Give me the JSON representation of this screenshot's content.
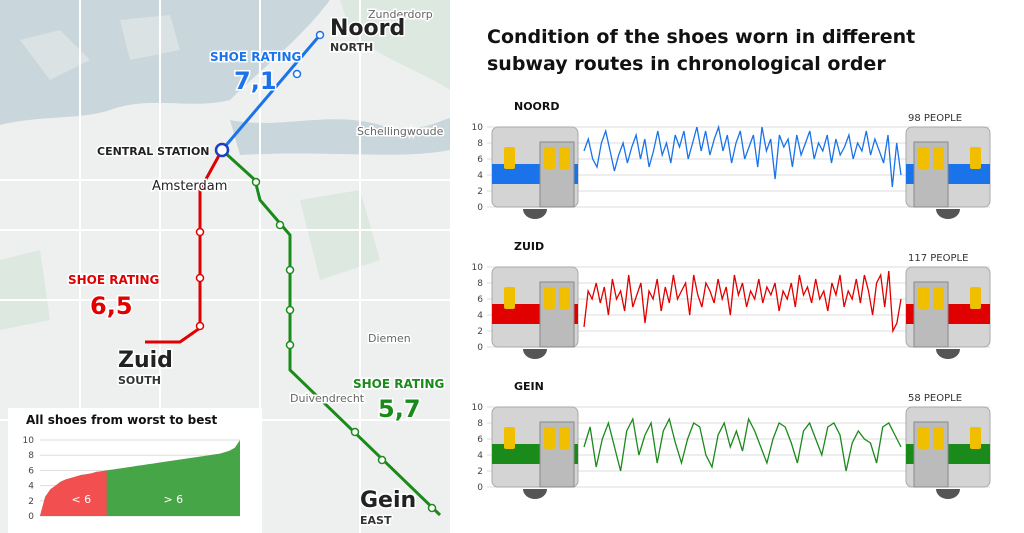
{
  "map": {
    "places": [
      {
        "label": "Zunderdorp",
        "kind": "place"
      },
      {
        "label": "Noord",
        "kind": "stop"
      },
      {
        "label": "NORTH",
        "kind": "sub"
      },
      {
        "label": "SHOE RATING",
        "kind": "rating-label",
        "color": "#1a73e8"
      },
      {
        "label": "7,1",
        "kind": "rating",
        "color": "#1a73e8"
      },
      {
        "label": "CENTRAL STATION",
        "kind": "station"
      },
      {
        "label": "Amsterdam",
        "kind": "city"
      },
      {
        "label": "Schellingwoude",
        "kind": "place"
      },
      {
        "label": "SHOE RATING",
        "kind": "rating-label",
        "color": "#e00000"
      },
      {
        "label": "6,5",
        "kind": "rating",
        "color": "#e00000"
      },
      {
        "label": "Zuid",
        "kind": "stop"
      },
      {
        "label": "SOUTH",
        "kind": "sub"
      },
      {
        "label": "Diemen",
        "kind": "place"
      },
      {
        "label": "Duivendrecht",
        "kind": "place"
      },
      {
        "label": "SHOE RATING",
        "kind": "rating-label",
        "color": "#1a8a1a"
      },
      {
        "label": "5,7",
        "kind": "rating",
        "color": "#1a8a1a"
      },
      {
        "label": "Gein",
        "kind": "stop"
      },
      {
        "label": "EAST",
        "kind": "sub"
      }
    ]
  },
  "headline": "Condition of the shoes worn in different subway routes in chronological order",
  "chart_data": [
    {
      "type": "line",
      "title": "NOORD",
      "annotation": "98 PEOPLE",
      "color": "#1a73e8",
      "ylim": [
        0,
        10
      ],
      "yticks": [
        0,
        2,
        4,
        6,
        8,
        10
      ],
      "values": [
        7,
        8.5,
        6,
        5,
        8,
        9.5,
        7,
        4.5,
        6.5,
        8,
        5.5,
        7.5,
        9,
        6,
        8.5,
        5,
        7,
        9.5,
        6.5,
        8,
        5.5,
        9,
        7.5,
        9.5,
        6,
        8,
        10,
        7,
        9.5,
        6.5,
        8.5,
        10,
        7,
        9,
        5.5,
        8,
        9.5,
        6,
        7.5,
        9,
        5,
        10,
        7,
        8.5,
        3.5,
        9,
        7.5,
        8.5,
        5,
        9,
        6.5,
        8,
        9.5,
        6,
        8,
        7,
        9,
        5.5,
        8.5,
        6.5,
        7.5,
        9,
        6,
        8,
        7,
        9.5,
        6.5,
        8.5,
        7,
        5.5,
        9,
        2.5,
        8,
        4
      ]
    },
    {
      "type": "line",
      "title": "ZUID",
      "annotation": "117 PEOPLE",
      "color": "#e00000",
      "ylim": [
        0,
        10
      ],
      "yticks": [
        0,
        2,
        4,
        6,
        8,
        10
      ],
      "values": [
        2.5,
        7,
        6,
        8,
        5.5,
        7.5,
        4,
        8.5,
        6,
        7,
        4.5,
        9,
        5,
        6.5,
        8,
        3,
        7,
        6,
        8.5,
        4.5,
        7.5,
        5.5,
        9,
        6,
        7,
        8,
        4,
        9,
        6.5,
        5,
        8,
        7,
        5.5,
        8.5,
        6,
        7.5,
        4,
        9,
        6.5,
        8,
        5,
        7,
        6,
        8.5,
        5.5,
        7.5,
        6.5,
        8,
        4.5,
        7,
        6,
        8,
        5,
        9,
        6.5,
        7.5,
        5.5,
        8.5,
        6,
        7,
        4.5,
        8,
        6.5,
        9,
        5,
        7,
        6,
        8.5,
        5.5,
        9,
        7,
        4,
        8,
        9,
        5,
        9.5,
        2,
        3,
        6
      ]
    },
    {
      "type": "line",
      "title": "GEIN",
      "annotation": "58 PEOPLE",
      "color": "#1a8a1a",
      "ylim": [
        0,
        10
      ],
      "yticks": [
        0,
        2,
        4,
        6,
        8,
        10
      ],
      "values": [
        5,
        7.5,
        2.5,
        6,
        8,
        5,
        2,
        7,
        8.5,
        4,
        6.5,
        8,
        3,
        7,
        8.5,
        5.5,
        3,
        6,
        8,
        7.5,
        4,
        2.5,
        6.5,
        8,
        5,
        7,
        4.5,
        8.5,
        7,
        5,
        3,
        6,
        8,
        7.5,
        5.5,
        3,
        7,
        8,
        6,
        4,
        7.5,
        8,
        6.5,
        2,
        5.5,
        7,
        6,
        5.5,
        3,
        7.5,
        8,
        6.5,
        5
      ]
    },
    {
      "type": "area",
      "title": "All shoes from worst to best",
      "threshold": 6,
      "ylim": [
        0,
        10
      ],
      "yticks": [
        0,
        2,
        4,
        6,
        8,
        10
      ],
      "regions": [
        {
          "label": "< 6",
          "color": "#f25050"
        },
        {
          "label": "> 6",
          "color": "#46a546"
        }
      ],
      "values": [
        0,
        2.5,
        3.5,
        4,
        4.5,
        4.8,
        5,
        5.2,
        5.4,
        5.5,
        5.6,
        5.8,
        5.9,
        6,
        6.1,
        6.2,
        6.3,
        6.4,
        6.5,
        6.6,
        6.7,
        6.8,
        6.9,
        7,
        7.1,
        7.2,
        7.3,
        7.4,
        7.5,
        7.6,
        7.7,
        7.8,
        7.9,
        8,
        8.1,
        8.2,
        8.4,
        8.6,
        9,
        10
      ]
    }
  ]
}
